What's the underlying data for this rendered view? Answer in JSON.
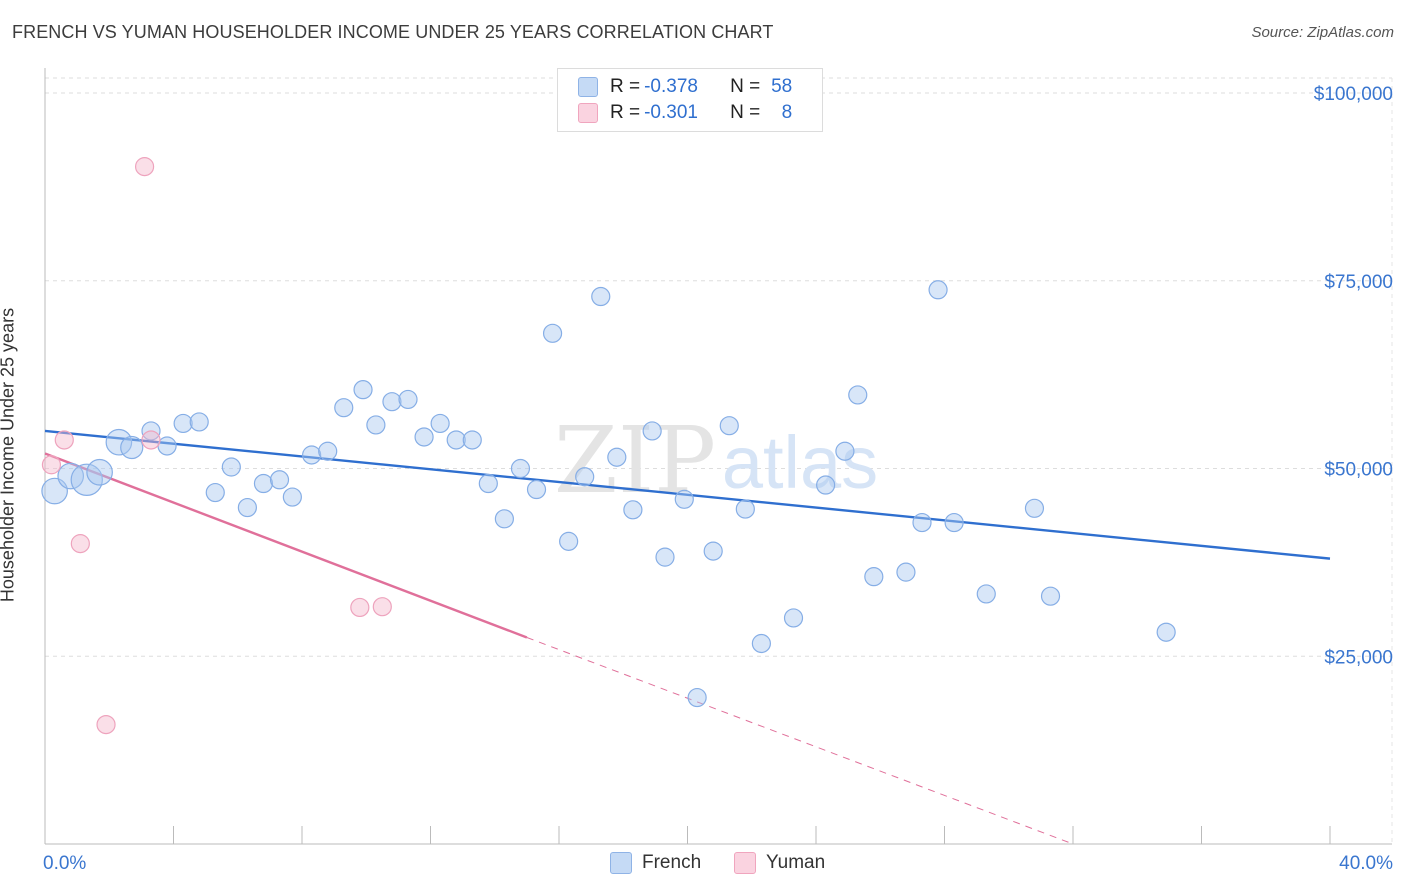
{
  "title": "FRENCH VS YUMAN HOUSEHOLDER INCOME UNDER 25 YEARS CORRELATION CHART",
  "source": "Source: ZipAtlas.com",
  "watermark": {
    "zip": "ZIP",
    "atlas": "atlas"
  },
  "legend_stats": [
    {
      "r_label": "R = ",
      "r_value": "-0.378",
      "n_label": "N = ",
      "n_value": "58",
      "color": "#a8c8f0"
    },
    {
      "r_label": "R = ",
      "r_value": "-0.301",
      "n_label": "N = ",
      "n_value": "8",
      "color": "#f5b8cc"
    }
  ],
  "chart_data": {
    "type": "scatter",
    "title": "FRENCH VS YUMAN HOUSEHOLDER INCOME UNDER 25 YEARS CORRELATION CHART",
    "xlabel": "",
    "ylabel": "Householder Income Under 25 years",
    "xlim": [
      0,
      40
    ],
    "ylim": [
      0,
      100000
    ],
    "x_tick_labels": [
      "0.0%",
      "40.0%"
    ],
    "y_tick_labels": [
      "$100,000",
      "$75,000",
      "$50,000",
      "$25,000"
    ],
    "y_ticks": [
      100000,
      75000,
      50000,
      25000
    ],
    "grid": true,
    "legend_position": "bottom-center",
    "series": [
      {
        "name": "French",
        "color": "#a8c8f0",
        "line_color": "#2f6fcf",
        "trend": {
          "x": [
            0,
            40
          ],
          "y": [
            55000,
            38000
          ]
        },
        "points": [
          {
            "x": 0.3,
            "y": 47000,
            "s": 2
          },
          {
            "x": 0.8,
            "y": 49000,
            "s": 2
          },
          {
            "x": 1.3,
            "y": 48500,
            "s": 3
          },
          {
            "x": 1.7,
            "y": 49500,
            "s": 2
          },
          {
            "x": 2.3,
            "y": 53500,
            "s": 2
          },
          {
            "x": 2.7,
            "y": 52800,
            "s": 1.5
          },
          {
            "x": 3.3,
            "y": 55000,
            "s": 1
          },
          {
            "x": 3.8,
            "y": 53000,
            "s": 1
          },
          {
            "x": 4.3,
            "y": 56000,
            "s": 1
          },
          {
            "x": 4.8,
            "y": 56200,
            "s": 1
          },
          {
            "x": 5.3,
            "y": 46800,
            "s": 1
          },
          {
            "x": 5.8,
            "y": 50200,
            "s": 1
          },
          {
            "x": 6.3,
            "y": 44800,
            "s": 1
          },
          {
            "x": 6.8,
            "y": 48000,
            "s": 1
          },
          {
            "x": 7.3,
            "y": 48500,
            "s": 1
          },
          {
            "x": 7.7,
            "y": 46200,
            "s": 1
          },
          {
            "x": 8.3,
            "y": 51800,
            "s": 1
          },
          {
            "x": 8.8,
            "y": 52300,
            "s": 1
          },
          {
            "x": 9.3,
            "y": 58100,
            "s": 1
          },
          {
            "x": 9.9,
            "y": 60500,
            "s": 1
          },
          {
            "x": 10.3,
            "y": 55800,
            "s": 1
          },
          {
            "x": 10.8,
            "y": 58900,
            "s": 1
          },
          {
            "x": 11.3,
            "y": 59200,
            "s": 1
          },
          {
            "x": 11.8,
            "y": 54200,
            "s": 1
          },
          {
            "x": 12.3,
            "y": 56000,
            "s": 1
          },
          {
            "x": 12.8,
            "y": 53800,
            "s": 1
          },
          {
            "x": 13.3,
            "y": 53800,
            "s": 1
          },
          {
            "x": 13.8,
            "y": 48000,
            "s": 1
          },
          {
            "x": 14.3,
            "y": 43300,
            "s": 1
          },
          {
            "x": 14.8,
            "y": 50000,
            "s": 1
          },
          {
            "x": 15.3,
            "y": 47200,
            "s": 1
          },
          {
            "x": 15.8,
            "y": 68000,
            "s": 1
          },
          {
            "x": 16.3,
            "y": 40300,
            "s": 1
          },
          {
            "x": 16.8,
            "y": 48900,
            "s": 1
          },
          {
            "x": 17.3,
            "y": 72900,
            "s": 1
          },
          {
            "x": 17.8,
            "y": 51500,
            "s": 1
          },
          {
            "x": 18.3,
            "y": 44500,
            "s": 1
          },
          {
            "x": 18.9,
            "y": 55000,
            "s": 1
          },
          {
            "x": 19.3,
            "y": 38200,
            "s": 1
          },
          {
            "x": 19.9,
            "y": 45900,
            "s": 1
          },
          {
            "x": 20.8,
            "y": 39000,
            "s": 1
          },
          {
            "x": 20.3,
            "y": 19500,
            "s": 1
          },
          {
            "x": 21.3,
            "y": 55700,
            "s": 1
          },
          {
            "x": 21.8,
            "y": 44600,
            "s": 1
          },
          {
            "x": 22.3,
            "y": 26700,
            "s": 1
          },
          {
            "x": 23.3,
            "y": 30100,
            "s": 1
          },
          {
            "x": 24.3,
            "y": 47800,
            "s": 1
          },
          {
            "x": 24.9,
            "y": 52300,
            "s": 1
          },
          {
            "x": 25.3,
            "y": 59800,
            "s": 1
          },
          {
            "x": 25.8,
            "y": 35600,
            "s": 1
          },
          {
            "x": 26.8,
            "y": 36200,
            "s": 1
          },
          {
            "x": 27.3,
            "y": 42800,
            "s": 1
          },
          {
            "x": 27.8,
            "y": 73800,
            "s": 1
          },
          {
            "x": 28.3,
            "y": 42800,
            "s": 1
          },
          {
            "x": 29.3,
            "y": 33300,
            "s": 1
          },
          {
            "x": 30.8,
            "y": 44700,
            "s": 1
          },
          {
            "x": 31.3,
            "y": 33000,
            "s": 1
          },
          {
            "x": 34.9,
            "y": 28200,
            "s": 1
          }
        ]
      },
      {
        "name": "Yuman",
        "color": "#f5b8cc",
        "line_color": "#e0709a",
        "trend": {
          "x": [
            0,
            15
          ],
          "y": [
            52000,
            27500
          ]
        },
        "trend_dashed": {
          "x": [
            15,
            32
          ],
          "y": [
            27500,
            0
          ]
        },
        "points": [
          {
            "x": 0.2,
            "y": 50500,
            "s": 1
          },
          {
            "x": 0.6,
            "y": 53800,
            "s": 1
          },
          {
            "x": 1.1,
            "y": 40000,
            "s": 1
          },
          {
            "x": 1.9,
            "y": 15900,
            "s": 1
          },
          {
            "x": 3.1,
            "y": 90200,
            "s": 1
          },
          {
            "x": 3.3,
            "y": 53800,
            "s": 1
          },
          {
            "x": 9.8,
            "y": 31500,
            "s": 1
          },
          {
            "x": 10.5,
            "y": 31600,
            "s": 1
          }
        ]
      }
    ]
  }
}
